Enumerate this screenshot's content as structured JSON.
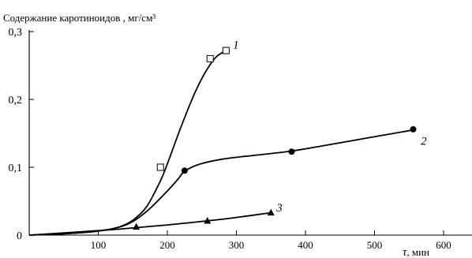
{
  "chart_data": {
    "type": "line",
    "title": "Содержание  каротиноидов , мг/см³",
    "xlabel": {
      "symbol": "τ",
      "unit": ", мин"
    },
    "ylabel": "",
    "xlim": [
      0,
      620
    ],
    "ylim": [
      0,
      0.31
    ],
    "x_ticks": [
      {
        "value": 100,
        "label": "100"
      },
      {
        "value": 200,
        "label": "200"
      },
      {
        "value": 300,
        "label": "300"
      },
      {
        "value": 400,
        "label": "400"
      },
      {
        "value": 500,
        "label": "500"
      },
      {
        "value": 600,
        "label": "600"
      }
    ],
    "y_ticks": [
      {
        "value": 0,
        "label": "0"
      },
      {
        "value": 0.1,
        "label": "0,1"
      },
      {
        "value": 0.2,
        "label": "0,2"
      },
      {
        "value": 0.3,
        "label": "0,3"
      }
    ],
    "grid": false,
    "series": [
      {
        "name": "1",
        "marker": "open-square",
        "curve": [
          [
            0,
            0
          ],
          [
            50,
            0.002
          ],
          [
            100,
            0.006
          ],
          [
            130,
            0.012
          ],
          [
            150,
            0.022
          ],
          [
            170,
            0.042
          ],
          [
            190,
            0.08
          ],
          [
            200,
            0.105
          ],
          [
            220,
            0.16
          ],
          [
            240,
            0.21
          ],
          [
            255,
            0.24
          ],
          [
            270,
            0.262
          ],
          [
            285,
            0.272
          ]
        ],
        "points": [
          [
            190,
            0.1
          ],
          [
            262,
            0.26
          ],
          [
            285,
            0.272
          ]
        ]
      },
      {
        "name": "2",
        "marker": "filled-circle",
        "curve": [
          [
            0,
            0
          ],
          [
            50,
            0.002
          ],
          [
            100,
            0.006
          ],
          [
            140,
            0.015
          ],
          [
            170,
            0.035
          ],
          [
            200,
            0.065
          ],
          [
            215,
            0.082
          ],
          [
            225,
            0.094
          ],
          [
            245,
            0.104
          ],
          [
            280,
            0.112
          ],
          [
            330,
            0.118
          ],
          [
            380,
            0.124
          ],
          [
            450,
            0.136
          ],
          [
            500,
            0.145
          ],
          [
            556,
            0.155
          ]
        ],
        "points": [
          [
            225,
            0.095
          ],
          [
            380,
            0.123
          ],
          [
            556,
            0.156
          ]
        ]
      },
      {
        "name": "3",
        "marker": "filled-triangle",
        "curve": [
          [
            0,
            0
          ],
          [
            60,
            0.004
          ],
          [
            120,
            0.008
          ],
          [
            155,
            0.011
          ],
          [
            200,
            0.015
          ],
          [
            258,
            0.021
          ],
          [
            300,
            0.026
          ],
          [
            350,
            0.033
          ]
        ],
        "points": [
          [
            155,
            0.012
          ],
          [
            258,
            0.021
          ],
          [
            350,
            0.033
          ]
        ]
      }
    ],
    "curve_labels": [
      {
        "series": "1",
        "text": "1",
        "at": [
          295,
          0.275
        ]
      },
      {
        "series": "2",
        "text": "2",
        "at": [
          567,
          0.133
        ]
      },
      {
        "series": "3",
        "text": "3",
        "at": [
          358,
          0.035
        ]
      }
    ]
  }
}
